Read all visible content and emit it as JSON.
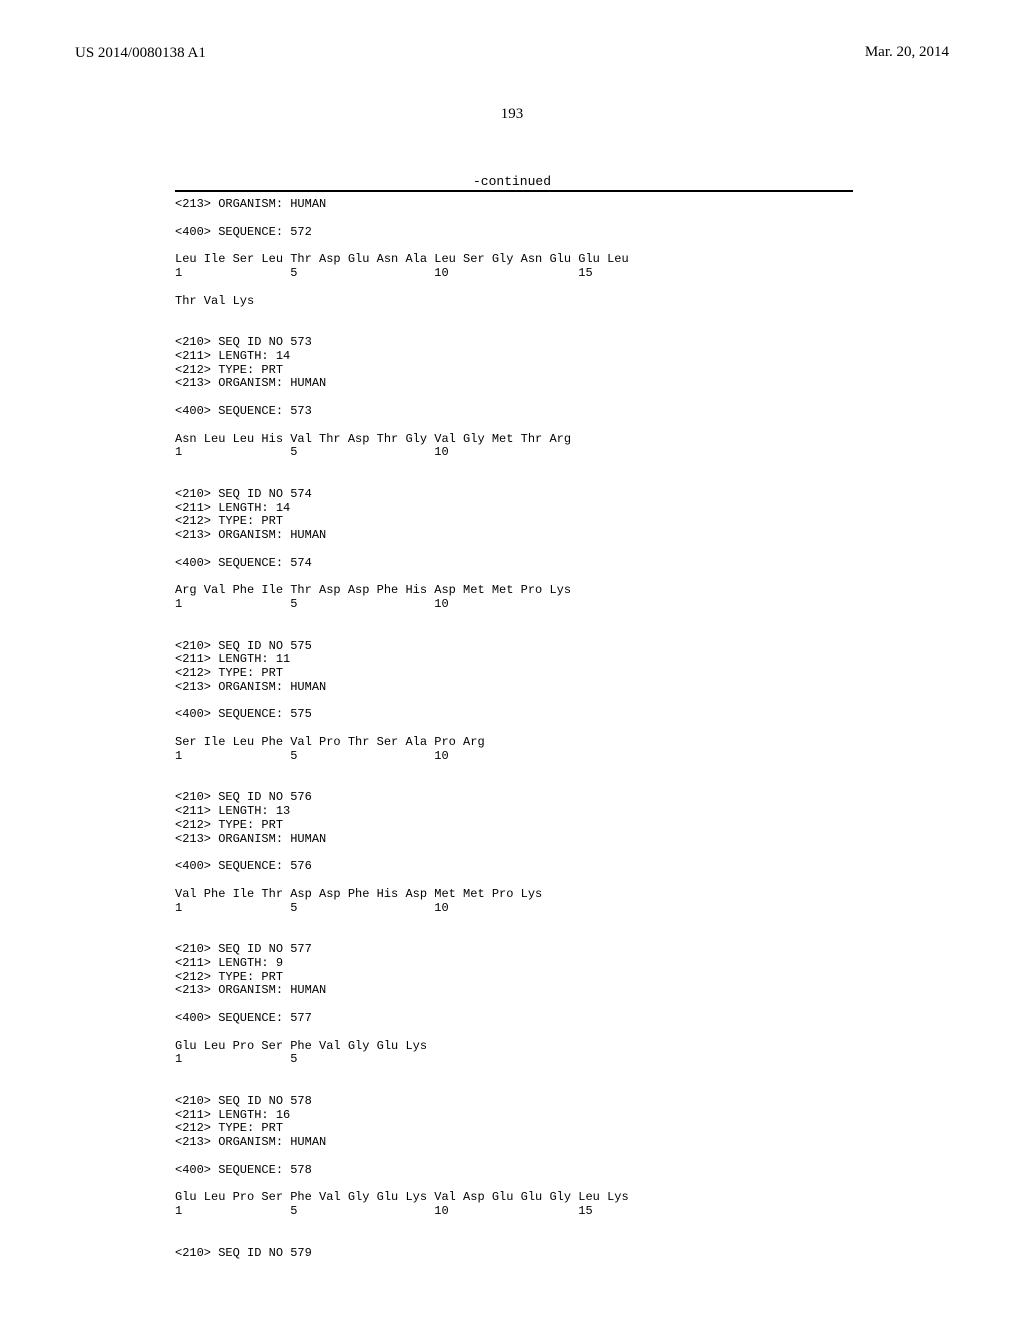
{
  "header": {
    "publication_number": "US 2014/0080138 A1",
    "publication_date": "Mar. 20, 2014",
    "page_number": "193",
    "continued_label": "-continued"
  },
  "sequences": [
    {
      "prefix_lines": [
        "<213> ORGANISM: HUMAN"
      ],
      "seq_header": "<400> SEQUENCE: 572",
      "seq_line1": "Leu Ile Ser Leu Thr Asp Glu Asn Ala Leu Ser Gly Asn Glu Glu Leu",
      "pos_line": "1               5                   10                  15",
      "extra_lines": [
        "",
        "Thr Val Lys"
      ]
    },
    {
      "prefix_lines": [
        "<210> SEQ ID NO 573",
        "<211> LENGTH: 14",
        "<212> TYPE: PRT",
        "<213> ORGANISM: HUMAN"
      ],
      "seq_header": "<400> SEQUENCE: 573",
      "seq_line1": "Asn Leu Leu His Val Thr Asp Thr Gly Val Gly Met Thr Arg",
      "pos_line": "1               5                   10",
      "extra_lines": []
    },
    {
      "prefix_lines": [
        "<210> SEQ ID NO 574",
        "<211> LENGTH: 14",
        "<212> TYPE: PRT",
        "<213> ORGANISM: HUMAN"
      ],
      "seq_header": "<400> SEQUENCE: 574",
      "seq_line1": "Arg Val Phe Ile Thr Asp Asp Phe His Asp Met Met Pro Lys",
      "pos_line": "1               5                   10",
      "extra_lines": []
    },
    {
      "prefix_lines": [
        "<210> SEQ ID NO 575",
        "<211> LENGTH: 11",
        "<212> TYPE: PRT",
        "<213> ORGANISM: HUMAN"
      ],
      "seq_header": "<400> SEQUENCE: 575",
      "seq_line1": "Ser Ile Leu Phe Val Pro Thr Ser Ala Pro Arg",
      "pos_line": "1               5                   10",
      "extra_lines": []
    },
    {
      "prefix_lines": [
        "<210> SEQ ID NO 576",
        "<211> LENGTH: 13",
        "<212> TYPE: PRT",
        "<213> ORGANISM: HUMAN"
      ],
      "seq_header": "<400> SEQUENCE: 576",
      "seq_line1": "Val Phe Ile Thr Asp Asp Phe His Asp Met Met Pro Lys",
      "pos_line": "1               5                   10",
      "extra_lines": []
    },
    {
      "prefix_lines": [
        "<210> SEQ ID NO 577",
        "<211> LENGTH: 9",
        "<212> TYPE: PRT",
        "<213> ORGANISM: HUMAN"
      ],
      "seq_header": "<400> SEQUENCE: 577",
      "seq_line1": "Glu Leu Pro Ser Phe Val Gly Glu Lys",
      "pos_line": "1               5",
      "extra_lines": []
    },
    {
      "prefix_lines": [
        "<210> SEQ ID NO 578",
        "<211> LENGTH: 16",
        "<212> TYPE: PRT",
        "<213> ORGANISM: HUMAN"
      ],
      "seq_header": "<400> SEQUENCE: 578",
      "seq_line1": "Glu Leu Pro Ser Phe Val Gly Glu Lys Val Asp Glu Glu Gly Leu Lys",
      "pos_line": "1               5                   10                  15",
      "extra_lines": []
    },
    {
      "prefix_lines": [
        "<210> SEQ ID NO 579"
      ],
      "seq_header": "",
      "seq_line1": "",
      "pos_line": "",
      "extra_lines": []
    }
  ]
}
